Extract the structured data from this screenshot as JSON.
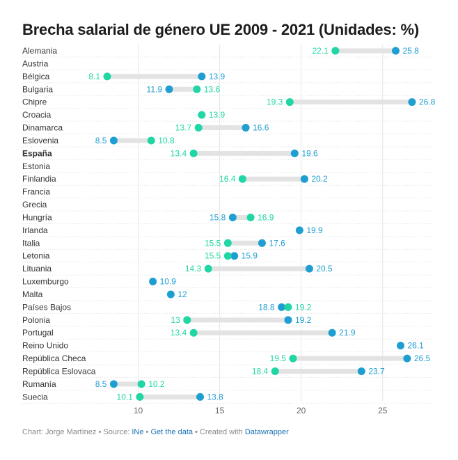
{
  "title": "Brecha salarial de género UE 2009 - 2021 (Unidades: %)",
  "footer": {
    "chart_by": "Chart: Jorge Martínez",
    "source_label": "Source:",
    "source_link": "INe",
    "get_data": "Get the data",
    "created_with": "Created with",
    "tool": "Datawrapper",
    "separator": "•"
  },
  "colors": {
    "value_2009": "#1f9ed1",
    "value_2021": "#1fd6a4",
    "range_bar": "#e3e3e3",
    "grid": "#e6e6e6"
  },
  "chart_data": {
    "type": "range-dot",
    "title": "Brecha salarial de género UE 2009 - 2021 (Unidades: %)",
    "xlabel": "",
    "ylabel": "",
    "xlim": [
      7.5,
      28
    ],
    "xticks": [
      10,
      15,
      20,
      25
    ],
    "grid": true,
    "highlighted_category": "España",
    "series": [
      {
        "key": "blue",
        "color": "#1f9ed1"
      },
      {
        "key": "green",
        "color": "#1fd6a4"
      }
    ],
    "rows": [
      {
        "country": "Alemania",
        "blue": 25.8,
        "green": 22.1
      },
      {
        "country": "Austria",
        "blue": null,
        "green": null
      },
      {
        "country": "Bélgica",
        "blue": 13.9,
        "green": 8.1
      },
      {
        "country": "Bulgaria",
        "blue": 11.9,
        "green": 13.6
      },
      {
        "country": "Chipre",
        "blue": 26.8,
        "green": 19.3
      },
      {
        "country": "Croacia",
        "blue": null,
        "green": 13.9
      },
      {
        "country": "Dinamarca",
        "blue": 16.6,
        "green": 13.7
      },
      {
        "country": "Eslovenia",
        "blue": 8.5,
        "green": 10.8
      },
      {
        "country": "España",
        "blue": 19.6,
        "green": 13.4
      },
      {
        "country": "Estonia",
        "blue": null,
        "green": null
      },
      {
        "country": "Finlandia",
        "blue": 20.2,
        "green": 16.4
      },
      {
        "country": "Francia",
        "blue": null,
        "green": null
      },
      {
        "country": "Grecia",
        "blue": null,
        "green": null
      },
      {
        "country": "Hungría",
        "blue": 15.8,
        "green": 16.9
      },
      {
        "country": "Irlanda",
        "blue": 19.9,
        "green": null
      },
      {
        "country": "Italia",
        "blue": 17.6,
        "green": 15.5
      },
      {
        "country": "Letonia",
        "blue": 15.9,
        "green": 15.5
      },
      {
        "country": "Lituania",
        "blue": 20.5,
        "green": 14.3
      },
      {
        "country": "Luxemburgo",
        "blue": 10.9,
        "green": null
      },
      {
        "country": "Malta",
        "blue": 12,
        "green": null
      },
      {
        "country": "Países Bajos",
        "blue": 18.8,
        "green": 19.2
      },
      {
        "country": "Polonia",
        "blue": 19.2,
        "green": 13
      },
      {
        "country": "Portugal",
        "blue": 21.9,
        "green": 13.4
      },
      {
        "country": "Reino Unido",
        "blue": 26.1,
        "green": null
      },
      {
        "country": "República Checa",
        "blue": 26.5,
        "green": 19.5
      },
      {
        "country": "República Eslovaca",
        "blue": 23.7,
        "green": 18.4
      },
      {
        "country": "Rumanía",
        "blue": 8.5,
        "green": 10.2
      },
      {
        "country": "Suecia",
        "blue": 13.8,
        "green": 10.1
      }
    ]
  }
}
